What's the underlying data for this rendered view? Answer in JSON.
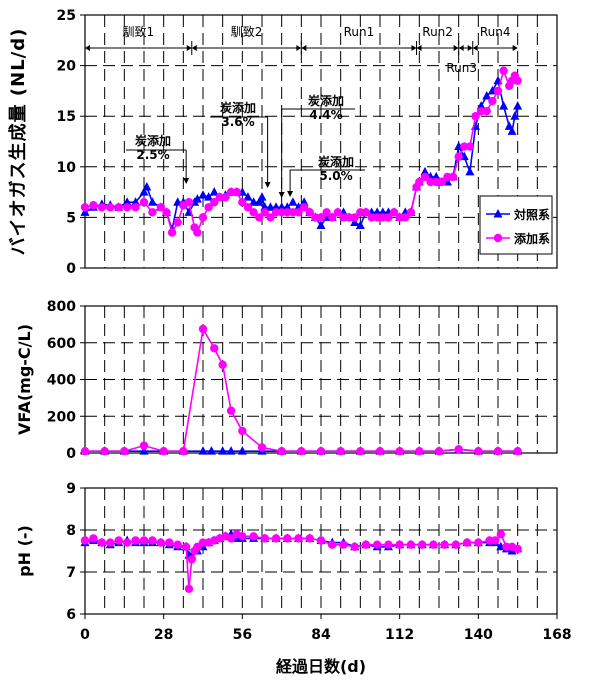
{
  "chart_data": [
    {
      "type": "line",
      "ylabel": "バイオガス生成量 (NL/d)",
      "xlim": [
        0,
        168
      ],
      "ylim": [
        0,
        25
      ],
      "yticks": [
        0,
        5,
        10,
        15,
        20,
        25
      ],
      "grid": "dashed",
      "legend_position": "bottom-right",
      "phases": [
        {
          "label": "馴致1",
          "start": 0,
          "end": 38
        },
        {
          "label": "馴致2",
          "start": 38,
          "end": 77
        },
        {
          "label": "Run1",
          "start": 77,
          "end": 118
        },
        {
          "label": "Run2",
          "start": 118,
          "end": 133
        },
        {
          "label": "Run3",
          "start": 133,
          "end": 138
        },
        {
          "label": "Run4",
          "start": 138,
          "end": 154
        }
      ],
      "annotations": [
        {
          "title": "炭添加",
          "value": "2.5%",
          "x": 36
        },
        {
          "title": "炭添加",
          "value": "3.6%",
          "x": 65
        },
        {
          "title": "炭添加",
          "value": "4.4%",
          "x": 70
        },
        {
          "title": "炭添加",
          "value": "5.0%",
          "x": 73
        }
      ],
      "series": [
        {
          "name": "対照系",
          "color": "#0000ff",
          "marker": "triangle",
          "x": [
            0,
            3,
            6,
            9,
            12,
            15,
            18,
            21,
            22,
            24,
            27,
            29,
            31,
            33,
            35,
            37,
            39,
            40,
            42,
            44,
            46,
            48,
            50,
            52,
            54,
            56,
            58,
            60,
            62,
            63,
            64,
            66,
            68,
            70,
            72,
            74,
            76,
            78,
            80,
            82,
            84,
            86,
            88,
            90,
            92,
            94,
            96,
            98,
            100,
            102,
            104,
            106,
            108,
            110,
            112,
            114,
            116,
            118,
            119,
            121,
            123,
            125,
            127,
            129,
            131,
            133,
            135,
            137,
            139,
            141,
            143,
            145,
            147,
            149,
            151,
            152,
            153,
            154
          ],
          "y": [
            5.5,
            6,
            6.3,
            6.2,
            6,
            6.5,
            6.5,
            7.5,
            8,
            6.5,
            6,
            5.5,
            3.8,
            6.5,
            6.5,
            5.5,
            6.5,
            6.8,
            7.2,
            7,
            7.5,
            7,
            7.2,
            7.5,
            7.5,
            7.5,
            7,
            6.5,
            6.5,
            7,
            6,
            6,
            6,
            6,
            6,
            6.5,
            6,
            6.5,
            5.5,
            5,
            4.2,
            5,
            5,
            5.5,
            5.5,
            5,
            4.5,
            4.2,
            5.5,
            5.5,
            5.5,
            5.5,
            5.5,
            5.5,
            5,
            5.5,
            5.5,
            8,
            8.5,
            9.5,
            9,
            9,
            8.5,
            8.5,
            9,
            12,
            11,
            9.5,
            14,
            16,
            17,
            17.5,
            18.5,
            16,
            14,
            13.5,
            15,
            16
          ]
        },
        {
          "name": "添加系",
          "color": "#ff00ff",
          "marker": "circle",
          "x": [
            0,
            3,
            6,
            9,
            12,
            15,
            18,
            21,
            24,
            27,
            29,
            31,
            33,
            35,
            37,
            39,
            40,
            42,
            44,
            46,
            48,
            50,
            52,
            54,
            56,
            58,
            60,
            62,
            64,
            66,
            68,
            70,
            72,
            74,
            76,
            78,
            80,
            82,
            84,
            86,
            88,
            90,
            92,
            94,
            96,
            98,
            100,
            102,
            104,
            106,
            108,
            110,
            112,
            114,
            116,
            118,
            119,
            121,
            123,
            125,
            127,
            129,
            131,
            133,
            135,
            137,
            139,
            141,
            143,
            145,
            147,
            149,
            151,
            152,
            153,
            154
          ],
          "y": [
            6,
            6.2,
            6,
            6,
            6,
            6,
            6,
            6.5,
            5.5,
            6,
            5.5,
            3.5,
            4.5,
            6.2,
            6.5,
            4,
            3.5,
            5,
            6,
            6.5,
            7,
            7,
            7.5,
            7.5,
            6.5,
            6,
            5.5,
            5,
            5.5,
            5,
            5.5,
            5.5,
            5.5,
            5.5,
            5.5,
            6,
            5.5,
            5,
            5,
            5.5,
            5,
            5.5,
            5,
            5,
            5,
            5.5,
            5.5,
            5,
            5,
            5,
            5,
            5.5,
            5,
            5,
            5.5,
            8,
            8.5,
            9,
            8.5,
            8.5,
            8.5,
            9,
            9,
            11,
            12,
            12,
            15,
            15.5,
            15.5,
            16.5,
            17.5,
            19.5,
            18,
            18.5,
            19,
            18.5
          ]
        }
      ]
    },
    {
      "type": "line",
      "ylabel": "VFA(mg-C/L)",
      "xlim": [
        0,
        168
      ],
      "ylim": [
        0,
        800
      ],
      "yticks": [
        0,
        200,
        400,
        600,
        800
      ],
      "grid": "dashed",
      "series": [
        {
          "name": "対照系",
          "color": "#0000ff",
          "marker": "triangle",
          "x": [
            0,
            7,
            14,
            21,
            28,
            35,
            42,
            45,
            49,
            52,
            56,
            63,
            70,
            77,
            84,
            91,
            98,
            105,
            112,
            119,
            126,
            133,
            140,
            147,
            154
          ],
          "y": [
            10,
            10,
            10,
            10,
            10,
            10,
            10,
            10,
            10,
            10,
            10,
            10,
            10,
            10,
            10,
            10,
            10,
            10,
            10,
            10,
            10,
            20,
            10,
            10,
            10
          ]
        },
        {
          "name": "添加系",
          "color": "#ff00ff",
          "marker": "circle",
          "x": [
            0,
            7,
            14,
            21,
            28,
            35,
            42,
            46,
            49,
            52,
            56,
            63,
            70,
            77,
            84,
            91,
            98,
            105,
            112,
            119,
            126,
            133,
            140,
            147,
            154
          ],
          "y": [
            10,
            10,
            10,
            40,
            10,
            10,
            675,
            570,
            480,
            230,
            120,
            30,
            10,
            10,
            10,
            10,
            10,
            10,
            10,
            10,
            10,
            20,
            10,
            10,
            10
          ]
        }
      ]
    },
    {
      "type": "line",
      "ylabel": "pH (-)",
      "xlabel": "経過日数(d)",
      "xlim": [
        0,
        168
      ],
      "xticks": [
        0,
        28,
        56,
        84,
        112,
        140,
        168
      ],
      "ylim": [
        6,
        9
      ],
      "yticks": [
        6,
        7,
        8,
        9
      ],
      "grid": "dashed",
      "series": [
        {
          "name": "対照系",
          "color": "#0000ff",
          "marker": "triangle",
          "x": [
            0,
            3,
            6,
            9,
            12,
            15,
            18,
            21,
            24,
            27,
            30,
            33,
            36,
            37,
            38,
            39,
            40,
            42,
            44,
            46,
            48,
            50,
            52,
            54,
            56,
            60,
            64,
            68,
            72,
            76,
            80,
            84,
            88,
            92,
            96,
            100,
            104,
            108,
            112,
            116,
            120,
            124,
            128,
            132,
            136,
            140,
            144,
            146,
            148,
            150,
            152,
            154
          ],
          "y": [
            7.7,
            7.75,
            7.7,
            7.65,
            7.7,
            7.75,
            7.7,
            7.7,
            7.7,
            7.7,
            7.65,
            7.6,
            7.6,
            7.4,
            7.4,
            7.5,
            7.5,
            7.6,
            7.7,
            7.75,
            7.8,
            7.85,
            7.9,
            7.8,
            7.8,
            7.8,
            7.8,
            7.8,
            7.8,
            7.8,
            7.8,
            7.75,
            7.7,
            7.7,
            7.6,
            7.65,
            7.6,
            7.6,
            7.65,
            7.65,
            7.65,
            7.65,
            7.65,
            7.65,
            7.7,
            7.7,
            7.7,
            7.7,
            7.6,
            7.55,
            7.5,
            7.55
          ]
        },
        {
          "name": "添加系",
          "color": "#ff00ff",
          "marker": "circle",
          "x": [
            0,
            3,
            6,
            9,
            12,
            15,
            18,
            21,
            24,
            27,
            30,
            33,
            36,
            37,
            38,
            39,
            40,
            42,
            44,
            46,
            48,
            50,
            52,
            54,
            56,
            60,
            64,
            68,
            72,
            76,
            80,
            84,
            88,
            92,
            96,
            100,
            104,
            108,
            112,
            116,
            120,
            124,
            128,
            132,
            136,
            140,
            144,
            146,
            148,
            150,
            152,
            154
          ],
          "y": [
            7.75,
            7.8,
            7.7,
            7.7,
            7.75,
            7.7,
            7.75,
            7.75,
            7.75,
            7.7,
            7.7,
            7.65,
            7.6,
            6.6,
            7.3,
            7.5,
            7.6,
            7.7,
            7.7,
            7.75,
            7.8,
            7.85,
            7.8,
            7.9,
            7.85,
            7.85,
            7.8,
            7.8,
            7.8,
            7.8,
            7.8,
            7.75,
            7.65,
            7.65,
            7.6,
            7.65,
            7.65,
            7.65,
            7.65,
            7.65,
            7.65,
            7.65,
            7.65,
            7.65,
            7.7,
            7.7,
            7.75,
            7.75,
            7.9,
            7.6,
            7.6,
            7.55
          ]
        }
      ]
    }
  ]
}
